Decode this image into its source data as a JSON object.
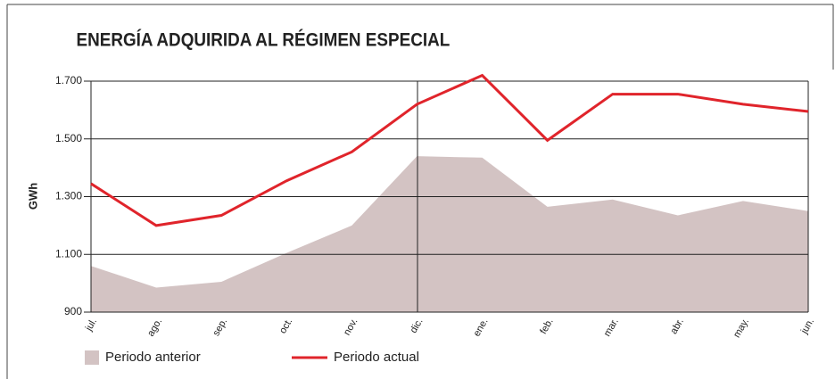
{
  "chart_data": {
    "type": "line",
    "title": "ENERGÍA ADQUIRIDA AL RÉGIMEN ESPECIAL",
    "y_label": "GWh",
    "categories": [
      "jul.",
      "ago.",
      "sep.",
      "oct.",
      "nov.",
      "dic.",
      "ene.",
      "feb.",
      "mar.",
      "abr.",
      "may.",
      "jun."
    ],
    "series": [
      {
        "name": "Periodo anterior",
        "color": "#d3c3c3",
        "kind": "area",
        "values": [
          1060,
          985,
          1005,
          1105,
          1200,
          1440,
          1435,
          1265,
          1290,
          1235,
          1285,
          1250
        ]
      },
      {
        "name": "Periodo actual",
        "color": "#e0242b",
        "kind": "line",
        "values": [
          1345,
          1200,
          1235,
          1355,
          1455,
          1620,
          1720,
          1495,
          1655,
          1655,
          1620,
          1595
        ]
      }
    ],
    "ylim": [
      900,
      1700
    ],
    "yticks": [
      {
        "value": 900,
        "label": "900"
      },
      {
        "value": 1100,
        "label": "1.100"
      },
      {
        "value": 1300,
        "label": "1.300"
      },
      {
        "value": 1500,
        "label": "1.500"
      },
      {
        "value": 1700,
        "label": "1.700"
      }
    ],
    "grid": true
  }
}
